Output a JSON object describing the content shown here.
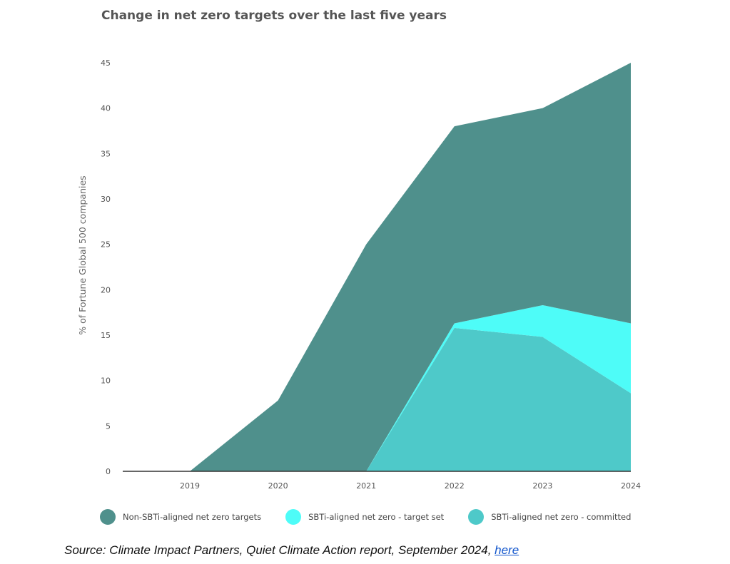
{
  "chart_data": {
    "type": "area",
    "stacked": true,
    "title": "Change in net zero targets over the last five years",
    "ylabel": "% of Fortune Global 500 companies",
    "xlabel": "",
    "x": [
      2019,
      2020,
      2021,
      2022,
      2023,
      2024
    ],
    "x_ticks": [
      "2019",
      "2020",
      "2021",
      "2022",
      "2023",
      "2024"
    ],
    "y_ticks": [
      "0",
      "5",
      "10",
      "15",
      "20",
      "25",
      "30",
      "35",
      "40",
      "45"
    ],
    "ylim": [
      0,
      45
    ],
    "legend_position": "bottom",
    "series": [
      {
        "name": "SBTi-aligned net zero - committed",
        "color": "#4ec9c9",
        "values": [
          0,
          0,
          0,
          15.8,
          14.8,
          8.6
        ]
      },
      {
        "name": "SBTi-aligned net zero - target set",
        "color": "#4efcf8",
        "values": [
          0,
          0,
          0,
          0.5,
          3.5,
          7.7
        ]
      },
      {
        "name": "Non-SBTi-aligned net zero targets",
        "color": "#4f908c",
        "values": [
          0,
          7.8,
          25,
          21.7,
          21.7,
          28.7
        ]
      }
    ],
    "totals": [
      0,
      7.8,
      25,
      38,
      40,
      45
    ]
  },
  "legend": [
    {
      "label": "Non-SBTi-aligned net zero targets",
      "color": "#4f908c"
    },
    {
      "label": "SBTi-aligned net zero - target set",
      "color": "#4efcf8"
    },
    {
      "label": "SBTi-aligned net zero - committed",
      "color": "#4ec9c9"
    }
  ],
  "source": {
    "text": "Source: Climate Impact Partners, Quiet Climate Action report, September 2024, ",
    "link_text": "here"
  }
}
